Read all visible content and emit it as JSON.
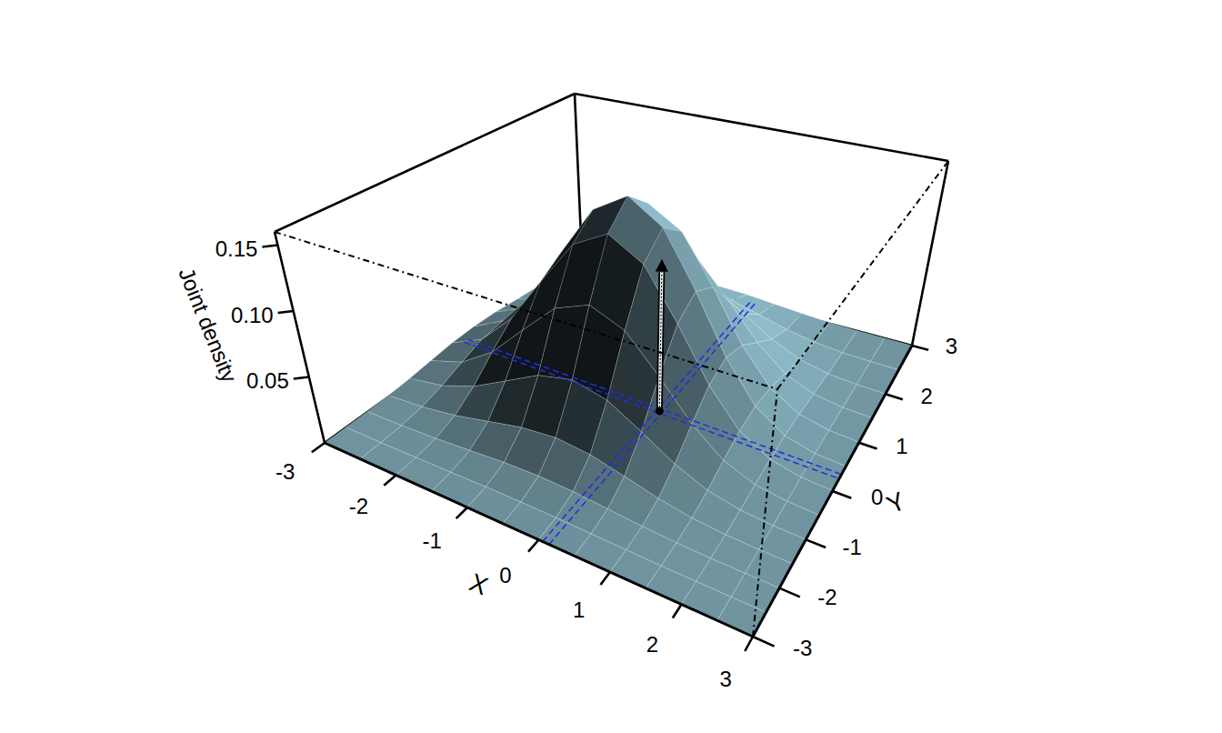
{
  "chart_data": {
    "type": "surface",
    "x_label": "X",
    "y_label": "Y",
    "z_label": "Joint density",
    "x": [
      -3,
      -2.5,
      -2,
      -1.5,
      -1,
      -0.5,
      0,
      0.5,
      1,
      1.5,
      2,
      2.5,
      3
    ],
    "y": [
      -3,
      -2.5,
      -2,
      -1.5,
      -1,
      -0.5,
      0,
      0.5,
      1,
      1.5,
      2,
      2.5,
      3
    ],
    "z": [
      [
        0,
        0,
        0.0001,
        0.0002,
        0.0003,
        0.0004,
        0.0003,
        0.0002,
        0.0001,
        0,
        0,
        0,
        0
      ],
      [
        0.0001,
        0.0002,
        0.0006,
        0.0011,
        0.0016,
        0.0018,
        0.0016,
        0.0011,
        0.0006,
        0.0002,
        0.0001,
        0,
        0
      ],
      [
        0.0003,
        0.0009,
        0.0023,
        0.0042,
        0.0062,
        0.007,
        0.0062,
        0.0042,
        0.0023,
        0.0009,
        0.0003,
        0.0001,
        0
      ],
      [
        0.0009,
        0.0029,
        0.007,
        0.0131,
        0.019,
        0.0215,
        0.019,
        0.0131,
        0.007,
        0.0029,
        0.0009,
        0.0002,
        0
      ],
      [
        0.0023,
        0.007,
        0.0168,
        0.0313,
        0.0456,
        0.0517,
        0.0456,
        0.0313,
        0.0168,
        0.007,
        0.0023,
        0.0006,
        0.0001
      ],
      [
        0.0042,
        0.0131,
        0.0313,
        0.0586,
        0.0852,
        0.0966,
        0.0852,
        0.0586,
        0.0313,
        0.0131,
        0.0042,
        0.0011,
        0.0002
      ],
      [
        0.0062,
        0.019,
        0.0456,
        0.0852,
        0.124,
        0.1405,
        0.124,
        0.0852,
        0.0456,
        0.019,
        0.0062,
        0.0016,
        0.0003
      ],
      [
        0.007,
        0.0215,
        0.0517,
        0.0966,
        0.1405,
        0.1592,
        0.1405,
        0.0966,
        0.0517,
        0.0215,
        0.007,
        0.0018,
        0.0004
      ],
      [
        0.0062,
        0.019,
        0.0456,
        0.0852,
        0.124,
        0.1405,
        0.124,
        0.0852,
        0.0456,
        0.019,
        0.0062,
        0.0016,
        0.0003
      ],
      [
        0.0042,
        0.0131,
        0.0313,
        0.0586,
        0.0852,
        0.0966,
        0.0852,
        0.0586,
        0.0313,
        0.0131,
        0.0042,
        0.0011,
        0.0002
      ],
      [
        0.0023,
        0.007,
        0.0168,
        0.0313,
        0.0456,
        0.0517,
        0.0456,
        0.0313,
        0.0168,
        0.007,
        0.0023,
        0.0006,
        0.0001
      ],
      [
        0.0009,
        0.0029,
        0.007,
        0.0131,
        0.019,
        0.0215,
        0.019,
        0.0131,
        0.007,
        0.0029,
        0.0009,
        0.0002,
        0
      ],
      [
        0.0003,
        0.0009,
        0.0023,
        0.0042,
        0.0062,
        0.007,
        0.0062,
        0.0042,
        0.0023,
        0.0009,
        0.0003,
        0.0001,
        0
      ]
    ],
    "xlim": [
      -3,
      3
    ],
    "ylim": [
      -3,
      3
    ],
    "zlim": [
      0,
      0.16
    ],
    "xticks": [
      -3,
      -2,
      -1,
      0,
      1,
      2,
      3
    ],
    "yticks": [
      -3,
      -2,
      -1,
      0,
      1,
      2,
      3
    ],
    "zticks": [
      0.05,
      {
        "value": 0.1,
        "label": "0.10"
      },
      0.15
    ],
    "color": "#9fd3e3",
    "point": {
      "x": 0.1,
      "y": 0.3,
      "density": 0.122
    }
  }
}
